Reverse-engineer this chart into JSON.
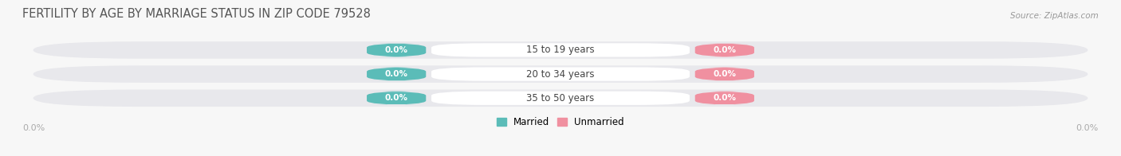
{
  "title": "FERTILITY BY AGE BY MARRIAGE STATUS IN ZIP CODE 79528",
  "source": "Source: ZipAtlas.com",
  "categories": [
    "15 to 19 years",
    "20 to 34 years",
    "35 to 50 years"
  ],
  "married_values": [
    0.0,
    0.0,
    0.0
  ],
  "unmarried_values": [
    0.0,
    0.0,
    0.0
  ],
  "married_color": "#5bbcb8",
  "unmarried_color": "#f090a0",
  "row_bg_color": "#e8e8ec",
  "fig_bg_color": "#f7f7f7",
  "axis_label_left": "0.0%",
  "axis_label_right": "0.0%",
  "title_fontsize": 10.5,
  "source_fontsize": 7.5,
  "legend_entries": [
    "Married",
    "Unmarried"
  ],
  "figsize": [
    14.06,
    1.96
  ],
  "dpi": 100
}
